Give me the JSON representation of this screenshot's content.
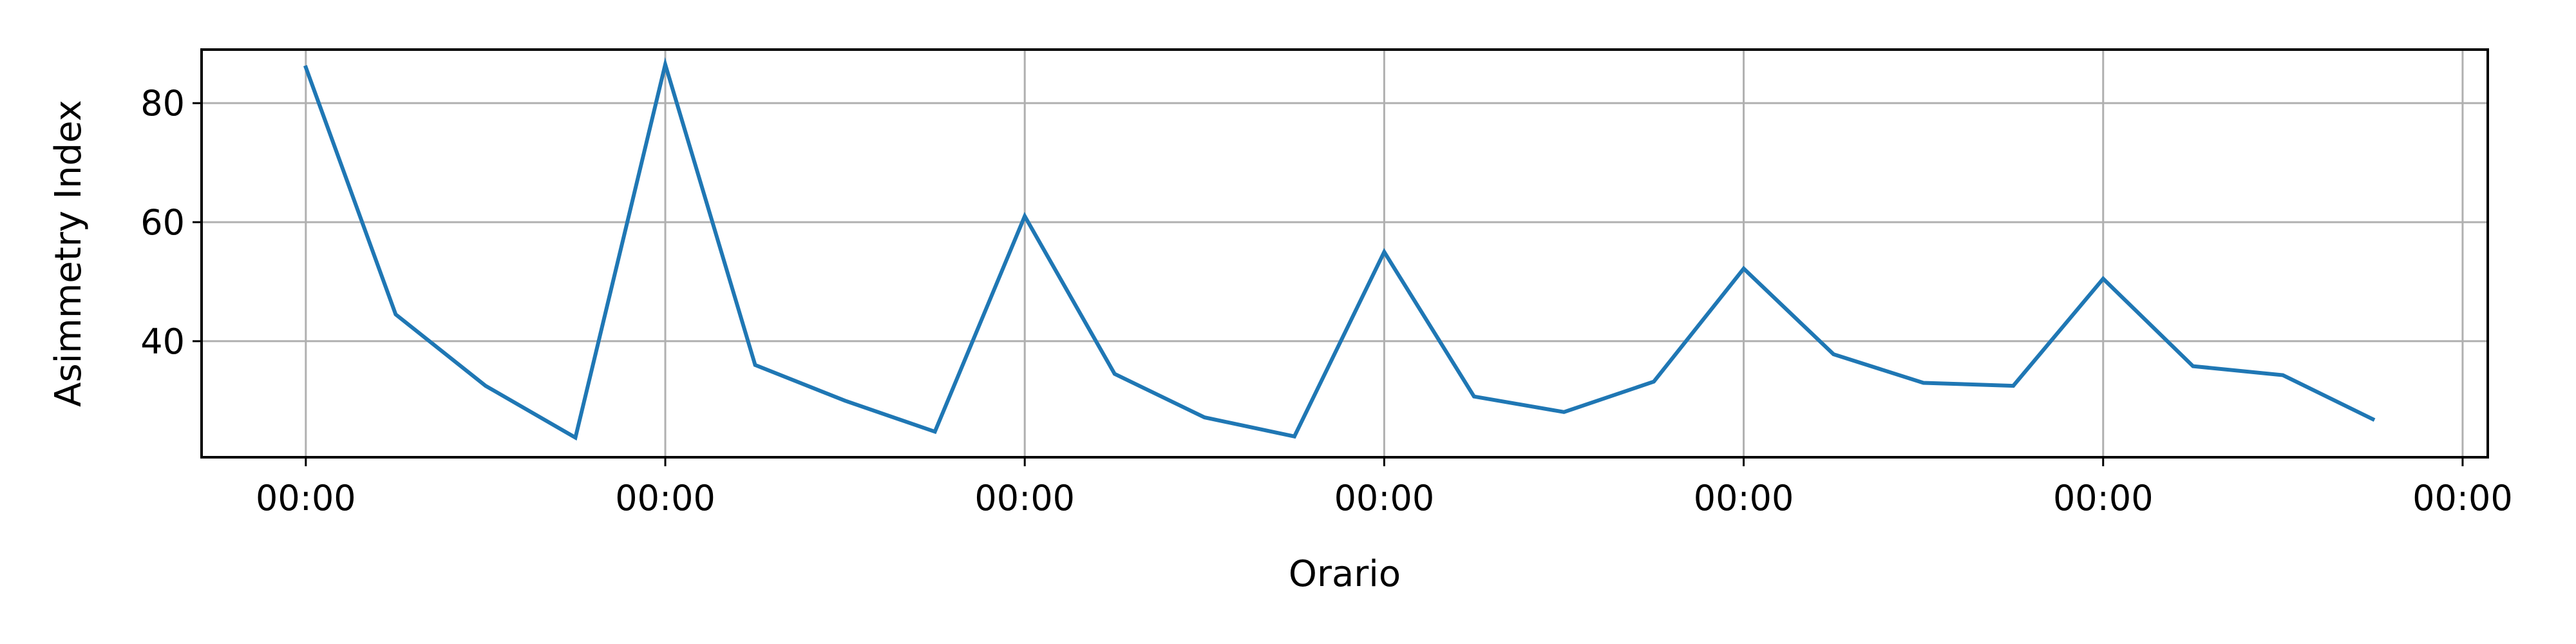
{
  "colors": {
    "line": "#1f77b4",
    "grid": "#b0b0b0",
    "axis": "#000000",
    "background": "#ffffff"
  },
  "chart_data": {
    "type": "line",
    "title": "",
    "xlabel": "Orario",
    "ylabel": "Asimmetry Index",
    "grid": true,
    "ylim": [
      20.5,
      89
    ],
    "xlim": [
      -0.29,
      6.07
    ],
    "x_ticks": [
      0,
      1,
      2,
      3,
      4,
      5,
      6
    ],
    "x_tick_labels": [
      "00:00",
      "00:00",
      "00:00",
      "00:00",
      "00:00",
      "00:00",
      "00:00"
    ],
    "y_ticks": [
      40,
      60,
      80
    ],
    "y_tick_labels": [
      "40",
      "60",
      "80"
    ],
    "series": [
      {
        "name": "",
        "x": [
          0,
          0.25,
          0.5,
          0.75,
          1,
          1.25,
          1.5,
          1.75,
          2,
          2.25,
          2.5,
          2.75,
          3,
          3.25,
          3.5,
          3.75,
          4,
          4.25,
          4.5,
          4.75,
          5,
          5.25,
          5.5,
          5.75
        ],
        "values": [
          86,
          44.5,
          32.5,
          23.8,
          86.5,
          36,
          30,
          24.8,
          61,
          34.5,
          27.2,
          24,
          55,
          30.7,
          28.1,
          33.2,
          52.2,
          37.8,
          33,
          32.5,
          50.5,
          35.8,
          34.3,
          26.9
        ]
      }
    ]
  }
}
